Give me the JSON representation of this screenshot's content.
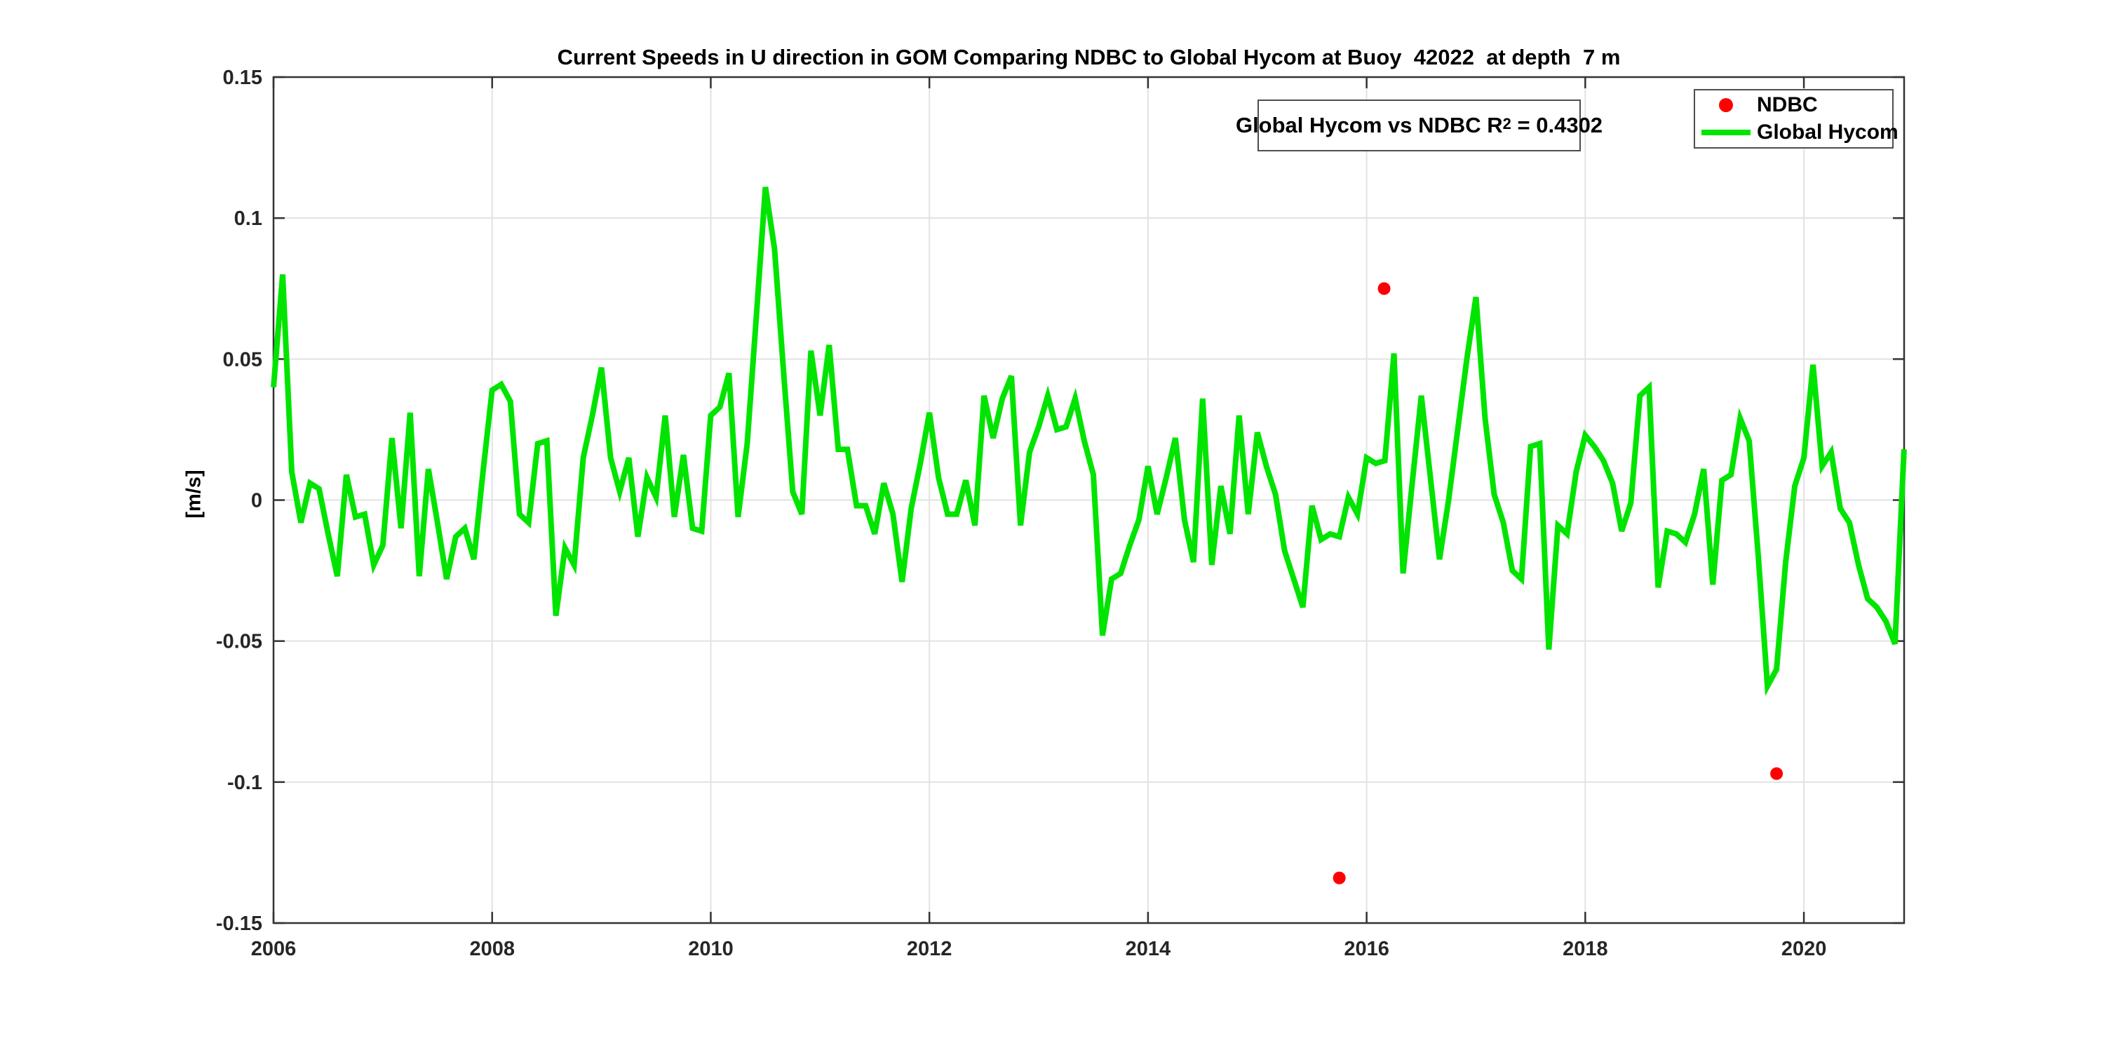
{
  "figure": {
    "title": "Current Speeds in U direction in GOM Comparing NDBC to Global Hycom at Buoy  42022  at depth  7 m",
    "y_axis_label": "[m/s]",
    "annotation": {
      "prefix": "Global Hycom vs NDBC R",
      "superscript": "2",
      "suffix": " = 0.4302"
    },
    "legend": {
      "position": "top-right",
      "items": [
        {
          "label": "NDBC",
          "marker": "red-dot",
          "color": "#ff0000"
        },
        {
          "label": "Global Hycom",
          "marker": "green-line",
          "color": "#00e400"
        }
      ]
    },
    "colors": {
      "ndbc": "#ff0000",
      "hycom": "#00e400",
      "grid": "#e2e2e2",
      "axis": "#333333",
      "tick_text": "#262626",
      "background": "#ffffff"
    }
  },
  "chart_data": {
    "type": "line",
    "title": "Current Speeds in U direction in GOM Comparing NDBC to Global Hycom at Buoy  42022  at depth  7 m",
    "xlabel": "",
    "ylabel": "[m/s]",
    "xlim": [
      2006,
      2020.917
    ],
    "ylim": [
      -0.15,
      0.15
    ],
    "xticks": [
      2006,
      2008,
      2010,
      2012,
      2014,
      2016,
      2018,
      2020
    ],
    "xtick_labels": [
      "2006",
      "2008",
      "2010",
      "2012",
      "2014",
      "2016",
      "2018",
      "2020"
    ],
    "yticks": [
      0.15,
      0.1,
      0.05,
      0,
      -0.05,
      -0.1,
      -0.15
    ],
    "ytick_labels": [
      "0.15",
      "0.1",
      "0.05",
      "0",
      "-0.05",
      "-0.1",
      "-0.15"
    ],
    "grid": true,
    "legend_position": "top-right",
    "annotation_text": "Global Hycom vs NDBC R^2 = 0.4302",
    "r_squared": 0.4302,
    "series": [
      {
        "name": "Global Hycom",
        "type": "line",
        "color": "#00e400",
        "line_width": 8,
        "x_start": 2006.0,
        "x_step": 0.0833333,
        "values": [
          0.04,
          0.08,
          0.01,
          -0.008,
          0.006,
          0.004,
          -0.012,
          -0.027,
          0.009,
          -0.006,
          -0.005,
          -0.023,
          -0.016,
          0.022,
          -0.01,
          0.031,
          -0.027,
          0.011,
          -0.008,
          -0.028,
          -0.013,
          -0.01,
          -0.021,
          0.01,
          0.039,
          0.041,
          0.035,
          -0.005,
          -0.008,
          0.02,
          0.021,
          -0.041,
          -0.017,
          -0.023,
          0.015,
          0.03,
          0.047,
          0.015,
          0.003,
          0.015,
          -0.013,
          0.008,
          0.001,
          0.03,
          -0.006,
          0.016,
          -0.01,
          -0.011,
          0.03,
          0.033,
          0.045,
          -0.006,
          0.02,
          0.065,
          0.111,
          0.089,
          0.045,
          0.003,
          -0.005,
          0.053,
          0.03,
          0.055,
          0.018,
          0.018,
          -0.002,
          -0.002,
          -0.012,
          0.006,
          -0.005,
          -0.029,
          -0.003,
          0.013,
          0.031,
          0.008,
          -0.005,
          -0.005,
          0.007,
          -0.009,
          0.037,
          0.022,
          0.036,
          0.044,
          -0.009,
          0.017,
          0.026,
          0.037,
          0.025,
          0.026,
          0.036,
          0.021,
          0.009,
          -0.048,
          -0.028,
          -0.026,
          -0.016,
          -0.007,
          0.012,
          -0.005,
          0.008,
          0.022,
          -0.007,
          -0.022,
          0.036,
          -0.023,
          0.005,
          -0.012,
          0.03,
          -0.005,
          0.024,
          0.012,
          0.002,
          -0.018,
          -0.028,
          -0.038,
          -0.002,
          -0.014,
          -0.012,
          -0.013,
          0.001,
          -0.005,
          0.015,
          0.013,
          0.014,
          0.052,
          -0.026,
          0.006,
          0.037,
          0.008,
          -0.021,
          0.0,
          0.025,
          0.05,
          0.072,
          0.029,
          0.002,
          -0.008,
          -0.025,
          -0.028,
          0.019,
          0.02,
          -0.053,
          -0.009,
          -0.012,
          0.01,
          0.023,
          0.019,
          0.014,
          0.006,
          -0.011,
          -0.001,
          0.037,
          0.04,
          -0.031,
          -0.011,
          -0.012,
          -0.015,
          -0.005,
          0.011,
          -0.03,
          0.007,
          0.009,
          0.029,
          0.021,
          -0.02,
          -0.066,
          -0.06,
          -0.022,
          0.005,
          0.015,
          0.048,
          0.012,
          0.017,
          -0.003,
          -0.008,
          -0.023,
          -0.035,
          -0.038,
          -0.043,
          -0.051,
          0.018
        ]
      },
      {
        "name": "NDBC",
        "type": "scatter",
        "color": "#ff0000",
        "marker_radius": 9,
        "points": [
          [
            2015.75,
            -0.134
          ],
          [
            2016.16,
            0.075
          ],
          [
            2019.75,
            -0.097
          ]
        ]
      }
    ]
  }
}
